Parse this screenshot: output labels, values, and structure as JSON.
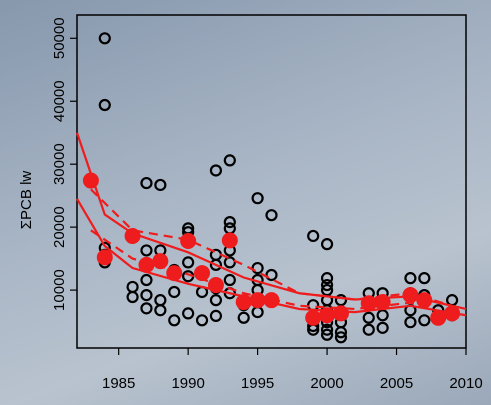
{
  "chart_data": {
    "type": "scatter",
    "ylabel": "ΣPCB lw",
    "xlim": [
      1982,
      2010
    ],
    "ylim": [
      800,
      53700
    ],
    "xticks": [
      1985,
      1990,
      1995,
      2000,
      2005,
      2010
    ],
    "yticks": [
      10000,
      20000,
      30000,
      40000,
      50000
    ],
    "series": [
      {
        "kind": "points",
        "filled": false,
        "color": "#000000",
        "x": [
          1983,
          1984,
          1984,
          1984,
          1984,
          1984,
          1986,
          1986,
          1987,
          1987,
          1987,
          1987,
          1987,
          1987,
          1988,
          1988,
          1988,
          1988,
          1988,
          1989,
          1989,
          1989,
          1990,
          1990,
          1990,
          1990,
          1990,
          1990,
          1991,
          1991,
          1992,
          1992,
          1992,
          1992,
          1992,
          1992,
          1993,
          1993,
          1993,
          1993,
          1993,
          1993,
          1993,
          1993,
          1994,
          1994,
          1995,
          1995,
          1995,
          1995,
          1995,
          1995,
          1996,
          1996,
          1996,
          1999,
          1999,
          1999,
          1999,
          1999,
          2000,
          2000,
          2000,
          2000,
          2000,
          2000,
          2000,
          2000,
          2000,
          2001,
          2001,
          2001,
          2001,
          2001,
          2003,
          2003,
          2003,
          2003,
          2004,
          2004,
          2004,
          2004,
          2006,
          2006,
          2006,
          2006,
          2007,
          2007,
          2007,
          2008,
          2008,
          2009,
          2009
        ],
        "values": [
          27400,
          50000,
          39400,
          16700,
          15600,
          14400,
          10500,
          8900,
          27000,
          16300,
          14000,
          11600,
          9200,
          7100,
          26700,
          16300,
          14300,
          8400,
          6800,
          13200,
          9700,
          5200,
          19800,
          19200,
          17900,
          14400,
          12200,
          6300,
          9700,
          5200,
          29000,
          15600,
          14000,
          10300,
          8400,
          5900,
          30600,
          20800,
          19800,
          17900,
          16300,
          14400,
          11600,
          9500,
          7600,
          5600,
          24600,
          13500,
          11600,
          10000,
          8400,
          6500,
          21900,
          12400,
          8400,
          18600,
          7600,
          5600,
          4300,
          3700,
          17300,
          11900,
          10800,
          10000,
          8400,
          6800,
          4900,
          3700,
          2900,
          8400,
          6300,
          4900,
          3300,
          2500,
          9500,
          7600,
          5600,
          3700,
          9500,
          8100,
          6000,
          4000,
          11900,
          9500,
          6800,
          4900,
          11900,
          9200,
          5200,
          6800,
          5600,
          8400,
          6000
        ]
      },
      {
        "kind": "line",
        "dashed": false,
        "color": "#ee1c1c",
        "x": [
          1982,
          1984,
          1986,
          1990,
          1994,
          1998,
          2002,
          2006,
          2010
        ],
        "values": [
          35000,
          22000,
          19000,
          16000,
          12000,
          9500,
          8500,
          9000,
          7000
        ]
      },
      {
        "kind": "line",
        "dashed": false,
        "color": "#ee1c1c",
        "x": [
          1982,
          1984,
          1986,
          1990,
          1994,
          1998,
          2002,
          2006,
          2010
        ],
        "values": [
          24500,
          17000,
          13500,
          11000,
          9000,
          7000,
          6500,
          7500,
          6000
        ]
      },
      {
        "kind": "line",
        "dashed": true,
        "color": "#ee1c1c",
        "x": [
          1983,
          1986,
          1990,
          1994,
          1998,
          2002,
          2006,
          2009
        ],
        "values": [
          26000,
          19500,
          18000,
          14000,
          9500,
          8500,
          9500,
          7500
        ]
      },
      {
        "kind": "line",
        "dashed": true,
        "color": "#ee1c1c",
        "x": [
          1983,
          1986,
          1990,
          1994,
          1998,
          2002,
          2006,
          2009
        ],
        "values": [
          19500,
          15000,
          12500,
          9500,
          7500,
          7000,
          8000,
          6000
        ]
      },
      {
        "kind": "points",
        "filled": true,
        "color": "#ee1c1c",
        "x": [
          1983,
          1984,
          1986,
          1987,
          1988,
          1989,
          1990,
          1991,
          1992,
          1993,
          1994,
          1995,
          1996,
          1999,
          2000,
          2001,
          2003,
          2004,
          2006,
          2007,
          2008,
          2009
        ],
        "values": [
          27400,
          15200,
          18600,
          14000,
          14600,
          12700,
          17800,
          12700,
          10800,
          17900,
          8100,
          8400,
          8400,
          5600,
          6000,
          6300,
          7900,
          8100,
          9200,
          8400,
          5600,
          6300
        ]
      }
    ]
  }
}
